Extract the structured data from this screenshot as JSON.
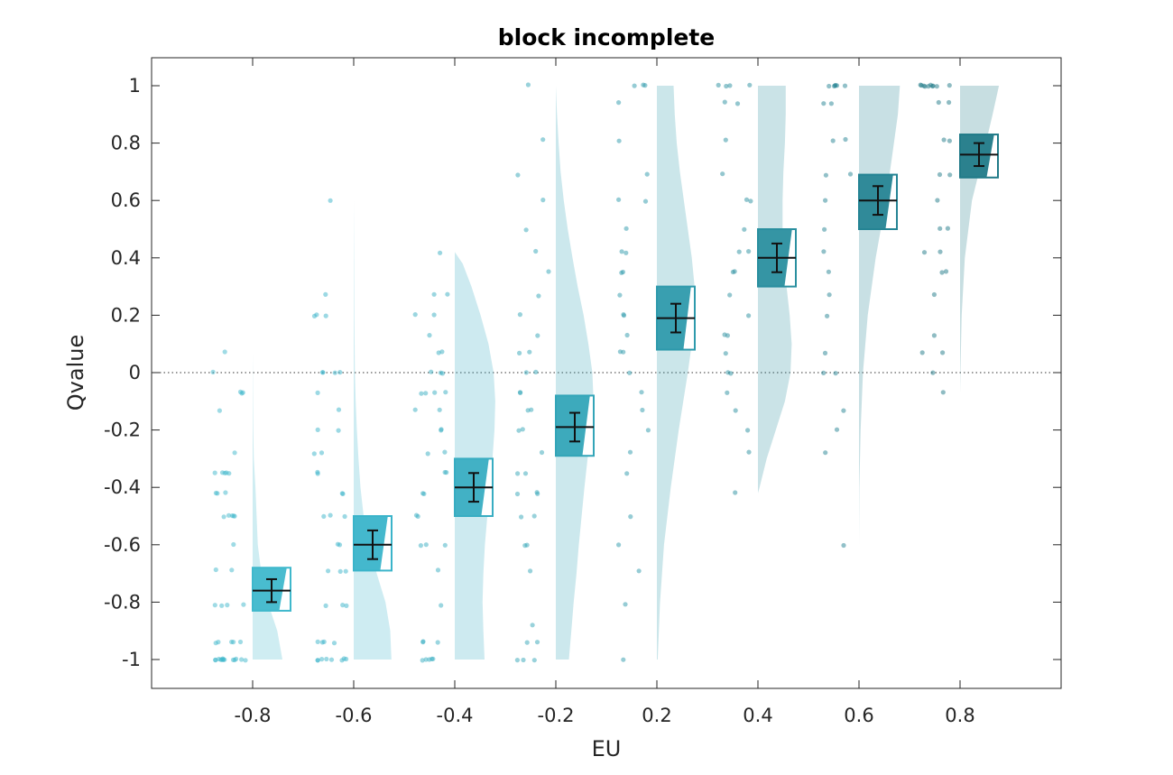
{
  "chart_data": {
    "type": "raincloud",
    "title": "block incomplete",
    "xlabel": "EU",
    "ylabel": "Qvalue",
    "ylim": [
      -1.1,
      1.1
    ],
    "yticks": [
      "-1",
      "-0.8",
      "-0.6",
      "-0.4",
      "-0.2",
      "0",
      "0.2",
      "0.4",
      "0.6",
      "0.8",
      "1"
    ],
    "reference_line": 0,
    "categories": [
      "-0.8",
      "-0.6",
      "-0.4",
      "-0.2",
      "0.2",
      "0.4",
      "0.6",
      "0.8"
    ],
    "colors": [
      "#3fb8cc",
      "#3ab4ca",
      "#38adc2",
      "#33a5b8",
      "#2e9aac",
      "#2a8f9f",
      "#258494",
      "#207a88"
    ],
    "groups": [
      {
        "eu": -0.8,
        "mean": -0.76,
        "err": 0.04,
        "box": [
          -0.83,
          -0.68
        ],
        "points": [
          -1,
          -1,
          -1,
          -1,
          -1,
          -1,
          -1,
          -1,
          -1,
          -1,
          -1,
          -1,
          -1,
          -1,
          -0.94,
          -0.94,
          -0.94,
          -0.94,
          -0.94,
          -0.81,
          -0.81,
          -0.81,
          -0.81,
          -0.69,
          -0.69,
          -0.6,
          -0.5,
          -0.5,
          -0.5,
          -0.5,
          -0.5,
          -0.42,
          -0.42,
          -0.42,
          -0.35,
          -0.35,
          -0.35,
          -0.35,
          -0.35,
          -0.28,
          -0.13,
          -0.07,
          -0.07,
          -0.07,
          0,
          0.07
        ],
        "density": [
          [
            -1,
            0.75
          ],
          [
            -0.9,
            0.62
          ],
          [
            -0.8,
            0.38
          ],
          [
            -0.7,
            0.22
          ],
          [
            -0.6,
            0.13
          ],
          [
            -0.5,
            0.1
          ],
          [
            -0.4,
            0.07
          ],
          [
            -0.3,
            0.03
          ],
          [
            -0.2,
            0.015
          ],
          [
            -0.1,
            0.008
          ],
          [
            0,
            0.004
          ],
          [
            0.07,
            0
          ]
        ]
      },
      {
        "eu": -0.6,
        "mean": -0.6,
        "err": 0.05,
        "box": [
          -0.69,
          -0.5
        ],
        "points": [
          -1,
          -1,
          -1,
          -1,
          -1,
          -1,
          -1,
          -1,
          -0.94,
          -0.94,
          -0.94,
          -0.94,
          -0.81,
          -0.81,
          -0.81,
          -0.69,
          -0.69,
          -0.69,
          -0.6,
          -0.6,
          -0.5,
          -0.5,
          -0.5,
          -0.42,
          -0.42,
          -0.35,
          -0.35,
          -0.28,
          -0.28,
          -0.2,
          -0.2,
          -0.13,
          -0.07,
          0,
          0,
          0,
          0,
          0.2,
          0.2,
          0.2,
          0.27,
          0.6
        ],
        "density": [
          [
            -1,
            0.95
          ],
          [
            -0.9,
            0.92
          ],
          [
            -0.8,
            0.8
          ],
          [
            -0.7,
            0.58
          ],
          [
            -0.6,
            0.38
          ],
          [
            -0.5,
            0.25
          ],
          [
            -0.4,
            0.17
          ],
          [
            -0.3,
            0.12
          ],
          [
            -0.2,
            0.08
          ],
          [
            -0.1,
            0.05
          ],
          [
            0,
            0.03
          ],
          [
            0.2,
            0.015
          ],
          [
            0.4,
            0.008
          ],
          [
            0.6,
            0
          ]
        ]
      },
      {
        "eu": -0.4,
        "mean": -0.4,
        "err": 0.05,
        "box": [
          -0.5,
          -0.3
        ],
        "points": [
          -1,
          -1,
          -1,
          -1,
          -1,
          -0.94,
          -0.94,
          -0.94,
          -0.81,
          -0.69,
          -0.6,
          -0.6,
          -0.6,
          -0.5,
          -0.5,
          -0.42,
          -0.42,
          -0.35,
          -0.35,
          -0.28,
          -0.28,
          -0.2,
          -0.2,
          -0.13,
          -0.13,
          -0.07,
          -0.07,
          -0.07,
          -0.07,
          0,
          0,
          0,
          0.07,
          0.07,
          0.13,
          0.2,
          0.2,
          0.27,
          0.27,
          0.42
        ],
        "density": [
          [
            -1,
            0.75
          ],
          [
            -0.9,
            0.72
          ],
          [
            -0.8,
            0.7
          ],
          [
            -0.7,
            0.72
          ],
          [
            -0.6,
            0.76
          ],
          [
            -0.5,
            0.82
          ],
          [
            -0.4,
            0.88
          ],
          [
            -0.3,
            0.95
          ],
          [
            -0.2,
            1.0
          ],
          [
            -0.1,
            1.02
          ],
          [
            0,
            0.98
          ],
          [
            0.1,
            0.85
          ],
          [
            0.2,
            0.65
          ],
          [
            0.3,
            0.42
          ],
          [
            0.38,
            0.2
          ],
          [
            0.42,
            0
          ]
        ]
      },
      {
        "eu": -0.2,
        "mean": -0.19,
        "err": 0.05,
        "box": [
          -0.29,
          -0.08
        ],
        "points": [
          -1,
          -1,
          -1,
          -0.94,
          -0.94,
          -0.88,
          -0.69,
          -0.6,
          -0.6,
          -0.5,
          -0.5,
          -0.42,
          -0.42,
          -0.42,
          -0.35,
          -0.35,
          -0.28,
          -0.2,
          -0.2,
          -0.13,
          -0.13,
          -0.07,
          -0.07,
          0,
          0,
          0.07,
          0.07,
          0.13,
          0.2,
          0.27,
          0.35,
          0.42,
          0.5,
          0.6,
          0.69,
          0.81,
          1
        ],
        "density": [
          [
            -1,
            0.33
          ],
          [
            -0.9,
            0.39
          ],
          [
            -0.8,
            0.45
          ],
          [
            -0.7,
            0.52
          ],
          [
            -0.6,
            0.58
          ],
          [
            -0.5,
            0.65
          ],
          [
            -0.4,
            0.72
          ],
          [
            -0.3,
            0.8
          ],
          [
            -0.2,
            0.9
          ],
          [
            -0.1,
            0.95
          ],
          [
            0,
            0.92
          ],
          [
            0.1,
            0.82
          ],
          [
            0.2,
            0.7
          ],
          [
            0.3,
            0.55
          ],
          [
            0.4,
            0.42
          ],
          [
            0.5,
            0.3
          ],
          [
            0.6,
            0.2
          ],
          [
            0.7,
            0.12
          ],
          [
            0.8,
            0.07
          ],
          [
            0.9,
            0.03
          ],
          [
            1,
            0
          ]
        ]
      },
      {
        "eu": 0.2,
        "mean": 0.19,
        "err": 0.05,
        "box": [
          0.08,
          0.3
        ],
        "points": [
          -1,
          -0.81,
          -0.69,
          -0.6,
          -0.5,
          -0.35,
          -0.28,
          -0.2,
          -0.13,
          -0.07,
          0,
          0.07,
          0.07,
          0.13,
          0.2,
          0.2,
          0.27,
          0.35,
          0.35,
          0.42,
          0.42,
          0.5,
          0.6,
          0.6,
          0.69,
          0.81,
          0.94,
          1,
          1,
          1
        ],
        "density": [
          [
            -1,
            0.02
          ],
          [
            -0.8,
            0.08
          ],
          [
            -0.6,
            0.18
          ],
          [
            -0.4,
            0.35
          ],
          [
            -0.2,
            0.55
          ],
          [
            0,
            0.78
          ],
          [
            0.1,
            0.88
          ],
          [
            0.2,
            0.95
          ],
          [
            0.3,
            0.95
          ],
          [
            0.4,
            0.88
          ],
          [
            0.5,
            0.78
          ],
          [
            0.6,
            0.68
          ],
          [
            0.7,
            0.58
          ],
          [
            0.8,
            0.5
          ],
          [
            0.9,
            0.45
          ],
          [
            1,
            0.42
          ]
        ]
      },
      {
        "eu": 0.4,
        "mean": 0.4,
        "err": 0.05,
        "box": [
          0.3,
          0.5
        ],
        "points": [
          -0.42,
          -0.28,
          -0.2,
          -0.13,
          -0.07,
          0,
          0,
          0.07,
          0.13,
          0.13,
          0.2,
          0.27,
          0.35,
          0.35,
          0.42,
          0.42,
          0.5,
          0.6,
          0.6,
          0.69,
          0.81,
          0.94,
          0.94,
          1,
          1,
          1,
          1
        ],
        "density": [
          [
            -0.42,
            0
          ],
          [
            -0.4,
            0.04
          ],
          [
            -0.3,
            0.22
          ],
          [
            -0.2,
            0.45
          ],
          [
            -0.1,
            0.68
          ],
          [
            0,
            0.82
          ],
          [
            0.1,
            0.85
          ],
          [
            0.2,
            0.8
          ],
          [
            0.3,
            0.72
          ],
          [
            0.4,
            0.66
          ],
          [
            0.5,
            0.62
          ],
          [
            0.6,
            0.62
          ],
          [
            0.7,
            0.64
          ],
          [
            0.8,
            0.68
          ],
          [
            0.9,
            0.7
          ],
          [
            1,
            0.7
          ]
        ]
      },
      {
        "eu": 0.6,
        "mean": 0.6,
        "err": 0.05,
        "box": [
          0.5,
          0.69
        ],
        "points": [
          -0.6,
          -0.28,
          -0.2,
          -0.13,
          0,
          0,
          0.07,
          0.2,
          0.27,
          0.35,
          0.42,
          0.5,
          0.6,
          0.69,
          0.69,
          0.81,
          0.81,
          0.94,
          0.94,
          1,
          1,
          1,
          1,
          1,
          1
        ],
        "density": [
          [
            -0.6,
            0
          ],
          [
            -0.4,
            0.01
          ],
          [
            -0.2,
            0.04
          ],
          [
            0,
            0.1
          ],
          [
            0.2,
            0.22
          ],
          [
            0.4,
            0.42
          ],
          [
            0.5,
            0.55
          ],
          [
            0.6,
            0.68
          ],
          [
            0.7,
            0.78
          ],
          [
            0.8,
            0.88
          ],
          [
            0.9,
            0.98
          ],
          [
            1,
            1.03
          ]
        ]
      },
      {
        "eu": 0.8,
        "mean": 0.76,
        "err": 0.04,
        "box": [
          0.68,
          0.83
        ],
        "points": [
          -0.07,
          0,
          0.07,
          0.07,
          0.13,
          0.27,
          0.35,
          0.35,
          0.42,
          0.42,
          0.5,
          0.5,
          0.6,
          0.69,
          0.69,
          0.81,
          0.81,
          0.94,
          0.94,
          1,
          1,
          1,
          1,
          1,
          1,
          1,
          1,
          1,
          1
        ],
        "density": [
          [
            -0.07,
            0
          ],
          [
            0,
            0.01
          ],
          [
            0.2,
            0.04
          ],
          [
            0.4,
            0.12
          ],
          [
            0.6,
            0.3
          ],
          [
            0.7,
            0.48
          ],
          [
            0.8,
            0.65
          ],
          [
            0.9,
            0.82
          ],
          [
            1,
            0.98
          ]
        ]
      }
    ]
  }
}
